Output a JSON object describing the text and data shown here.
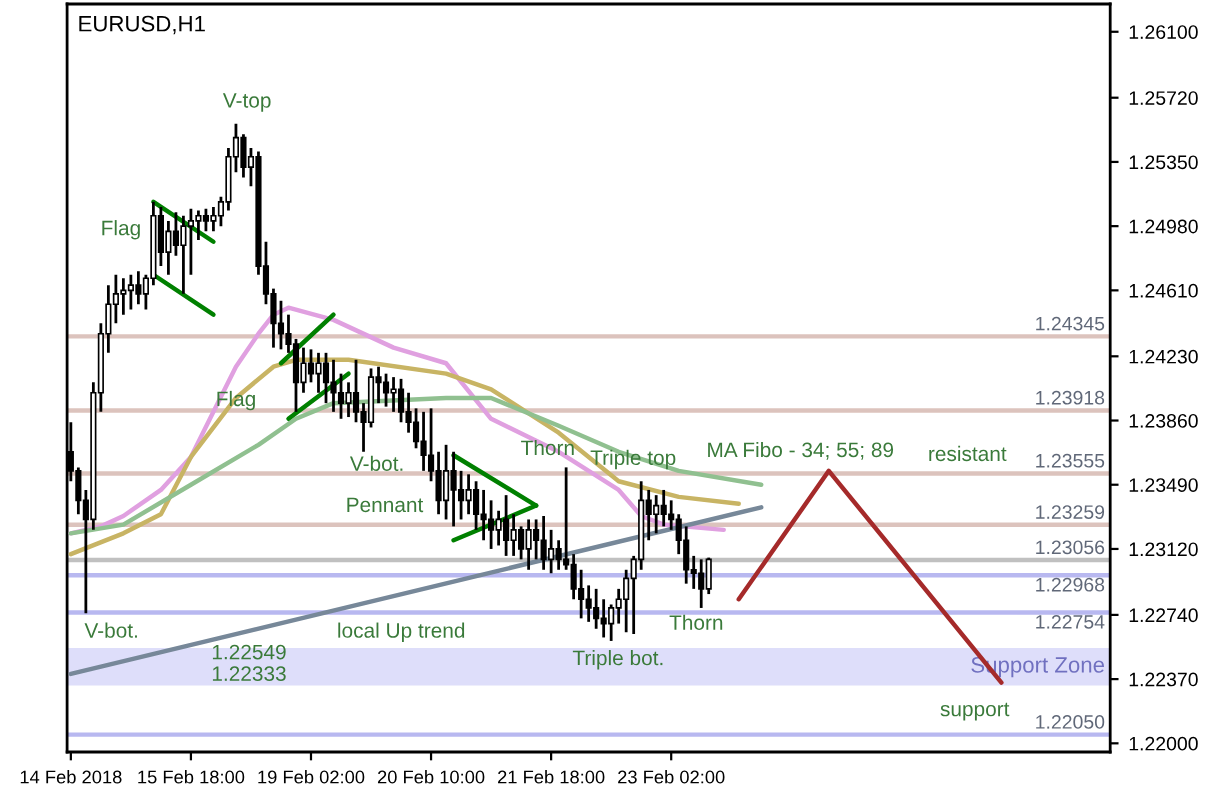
{
  "chart_data": {
    "type": "candlestick",
    "title": "EURUSD,H1",
    "color": "#000000",
    "categories": [
      "14 Feb 2018",
      null,
      null,
      null,
      null,
      null,
      null,
      null,
      null,
      null,
      null,
      null,
      null,
      null,
      null,
      null,
      "15 Feb 18:00",
      null,
      null,
      null,
      null,
      null,
      null,
      null,
      null,
      null,
      null,
      null,
      null,
      null,
      null,
      null,
      "19 Feb 02:00",
      null,
      null,
      null,
      null,
      null,
      null,
      null,
      null,
      null,
      null,
      null,
      null,
      null,
      null,
      null,
      "20 Feb 10:00",
      null,
      null,
      null,
      null,
      null,
      null,
      null,
      null,
      null,
      null,
      null,
      null,
      null,
      null,
      null,
      "21 Feb 18:00",
      null,
      null,
      null,
      null,
      null,
      null,
      null,
      null,
      null,
      null,
      null,
      null,
      null,
      null,
      null,
      "23 Feb 02:00",
      null,
      null,
      null,
      null,
      null,
      null,
      null,
      null,
      null,
      null,
      null,
      null,
      null,
      null,
      null,
      null,
      null,
      null,
      null,
      null,
      null,
      null,
      null,
      null,
      null,
      null,
      null,
      null,
      null,
      null,
      null,
      null,
      null,
      null,
      null,
      null,
      null,
      null,
      null,
      null,
      null,
      null,
      null,
      null,
      null,
      null,
      null,
      null,
      null,
      null,
      null,
      null,
      null,
      null,
      null,
      null,
      null,
      null
    ],
    "ohlc": [
      [
        1.2368,
        1.2385,
        1.2351,
        1.2357
      ],
      [
        1.2357,
        1.2359,
        1.2332,
        1.234
      ],
      [
        1.234,
        1.2346,
        1.2275,
        1.2329
      ],
      [
        1.2329,
        1.2408,
        1.2323,
        1.2402
      ],
      [
        1.2402,
        1.2442,
        1.2391,
        1.2436
      ],
      [
        1.2436,
        1.2464,
        1.2425,
        1.2453
      ],
      [
        1.2453,
        1.247,
        1.2442,
        1.2459
      ],
      [
        1.2459,
        1.2468,
        1.2447,
        1.2461
      ],
      [
        1.2461,
        1.247,
        1.245,
        1.2464
      ],
      [
        1.2464,
        1.2472,
        1.2453,
        1.2459
      ],
      [
        1.2459,
        1.247,
        1.245,
        1.2468
      ],
      [
        1.2468,
        1.2512,
        1.2464,
        1.2504
      ],
      [
        1.2504,
        1.2509,
        1.2475,
        1.2483
      ],
      [
        1.2483,
        1.2501,
        1.247,
        1.2495
      ],
      [
        1.2495,
        1.2506,
        1.2481,
        1.2487
      ],
      [
        1.2487,
        1.2504,
        1.2459,
        1.2498
      ],
      [
        1.2498,
        1.2508,
        1.247,
        1.2501
      ],
      [
        1.2501,
        1.2507,
        1.249,
        1.2504
      ],
      [
        1.2504,
        1.2508,
        1.2495,
        1.2501
      ],
      [
        1.2501,
        1.2509,
        1.2495,
        1.2504
      ],
      [
        1.2504,
        1.2515,
        1.2498,
        1.2512
      ],
      [
        1.2512,
        1.2543,
        1.2507,
        1.2538
      ],
      [
        1.2538,
        1.2557,
        1.2529,
        1.2549
      ],
      [
        1.2549,
        1.2551,
        1.2526,
        1.2532
      ],
      [
        1.2532,
        1.2543,
        1.2521,
        1.2538
      ],
      [
        1.2538,
        1.2541,
        1.247,
        1.2475
      ],
      [
        1.2475,
        1.2489,
        1.2453,
        1.2459
      ],
      [
        1.2459,
        1.2462,
        1.2428,
        1.2442
      ],
      [
        1.2442,
        1.2455,
        1.2427,
        1.2436
      ],
      [
        1.2436,
        1.2447,
        1.2425,
        1.243
      ],
      [
        1.243,
        1.2433,
        1.2391,
        1.2408
      ],
      [
        1.2408,
        1.2428,
        1.2402,
        1.2419
      ],
      [
        1.2419,
        1.2427,
        1.2408,
        1.2413
      ],
      [
        1.2413,
        1.2425,
        1.2402,
        1.2419
      ],
      [
        1.2419,
        1.2425,
        1.2396,
        1.2408
      ],
      [
        1.2408,
        1.2421,
        1.2391,
        1.2402
      ],
      [
        1.2402,
        1.2413,
        1.2387,
        1.2396
      ],
      [
        1.2396,
        1.2408,
        1.2388,
        1.2402
      ],
      [
        1.2402,
        1.2421,
        1.2385,
        1.2391
      ],
      [
        1.2391,
        1.2396,
        1.2368,
        1.2385
      ],
      [
        1.2385,
        1.2416,
        1.2382,
        1.2411
      ],
      [
        1.2411,
        1.2417,
        1.2396,
        1.2408
      ],
      [
        1.2408,
        1.2413,
        1.2394,
        1.2402
      ],
      [
        1.2402,
        1.2411,
        1.2391,
        1.2404
      ],
      [
        1.2404,
        1.241,
        1.2385,
        1.2391
      ],
      [
        1.2391,
        1.2402,
        1.2379,
        1.2385
      ],
      [
        1.2385,
        1.2393,
        1.237,
        1.2374
      ],
      [
        1.2374,
        1.2391,
        1.2357,
        1.2366
      ],
      [
        1.2366,
        1.2393,
        1.2351,
        1.2357
      ],
      [
        1.2357,
        1.2368,
        1.2332,
        1.234
      ],
      [
        1.234,
        1.2372,
        1.2329,
        1.2357
      ],
      [
        1.2357,
        1.2368,
        1.2325,
        1.2346
      ],
      [
        1.2346,
        1.2357,
        1.2329,
        1.234
      ],
      [
        1.234,
        1.2355,
        1.2332,
        1.2346
      ],
      [
        1.2346,
        1.2351,
        1.2323,
        1.2332
      ],
      [
        1.2332,
        1.2346,
        1.2317,
        1.2329
      ],
      [
        1.2329,
        1.234,
        1.2312,
        1.2323
      ],
      [
        1.2323,
        1.2334,
        1.2314,
        1.2329
      ],
      [
        1.2329,
        1.2343,
        1.2308,
        1.2317
      ],
      [
        1.2317,
        1.2332,
        1.2308,
        1.2323
      ],
      [
        1.2323,
        1.2325,
        1.2306,
        1.2312
      ],
      [
        1.2312,
        1.2329,
        1.23,
        1.2323
      ],
      [
        1.2323,
        1.2329,
        1.2306,
        1.2317
      ],
      [
        1.2317,
        1.2331,
        1.23,
        1.2306
      ],
      [
        1.2306,
        1.2323,
        1.2298,
        1.2312
      ],
      [
        1.2312,
        1.2317,
        1.23,
        1.2306
      ],
      [
        1.2306,
        1.2359,
        1.23,
        1.2303
      ],
      [
        1.2303,
        1.2309,
        1.2283,
        1.2289
      ],
      [
        1.2289,
        1.23,
        1.2272,
        1.2283
      ],
      [
        1.2283,
        1.2291,
        1.227,
        1.2278
      ],
      [
        1.2278,
        1.2289,
        1.2266,
        1.2272
      ],
      [
        1.2272,
        1.2283,
        1.2261,
        1.2269
      ],
      [
        1.2269,
        1.228,
        1.2259,
        1.2278
      ],
      [
        1.2278,
        1.2289,
        1.2269,
        1.2283
      ],
      [
        1.2283,
        1.23,
        1.2264,
        1.2295
      ],
      [
        1.2295,
        1.2308,
        1.2263,
        1.2306
      ],
      [
        1.2306,
        1.2351,
        1.23,
        1.234
      ],
      [
        1.234,
        1.2346,
        1.2317,
        1.2332
      ],
      [
        1.2332,
        1.2343,
        1.2321,
        1.2337
      ],
      [
        1.2337,
        1.2346,
        1.2325,
        1.2332
      ],
      [
        1.2332,
        1.234,
        1.2323,
        1.2329
      ],
      [
        1.2329,
        1.2332,
        1.2309,
        1.2317
      ],
      [
        1.2317,
        1.2325,
        1.2292,
        1.23
      ],
      [
        1.23,
        1.2308,
        1.2289,
        1.2298
      ],
      [
        1.2298,
        1.2306,
        1.2278,
        1.2289
      ],
      [
        1.2289,
        1.2307,
        1.2286,
        1.2306
      ],
      null,
      null,
      null,
      null,
      null,
      null,
      null,
      null,
      null,
      null,
      null,
      null,
      null,
      null,
      null,
      null,
      null,
      null,
      null,
      null,
      null,
      null,
      null,
      null,
      null,
      null,
      null,
      null,
      null,
      null,
      null,
      null,
      null,
      null,
      null,
      null,
      null,
      null,
      null,
      null,
      null,
      null,
      null,
      null,
      null,
      null,
      null,
      null,
      null,
      null,
      null,
      null,
      null
    ],
    "series": [
      {
        "type": "line",
        "color": "#e0a0e0",
        "values": [
          1.2321,
          null,
          null,
          null,
          1.2325,
          null,
          null,
          1.2331,
          null,
          null,
          null,
          null,
          1.2346,
          null,
          null,
          null,
          1.2365,
          null,
          null,
          1.2391,
          null,
          null,
          1.2417,
          null,
          null,
          1.2436,
          null,
          1.2447,
          null,
          1.2451,
          null,
          null,
          null,
          null,
          null,
          1.2444,
          null,
          null,
          null,
          null,
          null,
          null,
          null,
          1.2428,
          null,
          null,
          null,
          null,
          null,
          null,
          1.2419,
          null,
          null,
          null,
          null,
          null,
          1.2387,
          null,
          null,
          null,
          null,
          null,
          null,
          null,
          null,
          1.2368,
          null,
          null,
          null,
          null,
          null,
          null,
          null,
          1.2346,
          null,
          null,
          1.2331,
          null,
          null,
          1.2326,
          null,
          null,
          null,
          null,
          null,
          null,
          null,
          1.2323,
          null,
          null,
          null,
          null,
          null,
          null,
          null,
          null,
          null,
          null,
          null,
          null,
          null,
          null,
          null,
          null,
          null,
          null,
          null,
          null,
          null,
          null,
          null,
          null,
          null,
          null,
          null,
          null,
          null,
          null,
          null,
          null,
          null,
          null,
          null,
          null,
          null,
          null,
          null,
          null,
          null,
          null,
          null,
          null,
          null,
          null,
          null,
          null,
          null,
          null,
          null
        ]
      },
      {
        "type": "line",
        "color": "#c8b464",
        "values": [
          1.2309,
          null,
          null,
          null,
          null,
          null,
          null,
          1.2321,
          null,
          null,
          null,
          null,
          1.2332,
          null,
          null,
          null,
          1.2365,
          null,
          null,
          null,
          null,
          null,
          1.2399,
          null,
          null,
          null,
          null,
          1.2417,
          null,
          null,
          1.2421,
          null,
          null,
          null,
          null,
          null,
          null,
          1.2421,
          null,
          null,
          null,
          null,
          null,
          null,
          null,
          null,
          null,
          null,
          null,
          null,
          1.2413,
          null,
          null,
          null,
          null,
          null,
          1.2404,
          null,
          null,
          null,
          null,
          null,
          null,
          null,
          null,
          1.2379,
          null,
          null,
          null,
          null,
          null,
          null,
          null,
          1.2351,
          null,
          null,
          null,
          null,
          null,
          null,
          null,
          1.2342,
          null,
          null,
          null,
          null,
          null,
          null,
          null,
          1.2338,
          null,
          null,
          null,
          null,
          null,
          null,
          null,
          null,
          null,
          null,
          null,
          null,
          null,
          null,
          null,
          null,
          null,
          null,
          null,
          null,
          null,
          null,
          null,
          null,
          null,
          null,
          null,
          null,
          null,
          null,
          null,
          null,
          null,
          null,
          null,
          null,
          null,
          null,
          null,
          null,
          null,
          null,
          null,
          null,
          null,
          null,
          null,
          null,
          null
        ]
      },
      {
        "type": "line",
        "color": "#90c090",
        "values": [
          1.2321,
          null,
          null,
          null,
          null,
          null,
          null,
          1.2326,
          null,
          null,
          null,
          null,
          null,
          null,
          null,
          null,
          1.2349,
          null,
          null,
          null,
          null,
          null,
          null,
          null,
          null,
          1.2372,
          null,
          null,
          null,
          null,
          1.2387,
          null,
          null,
          null,
          null,
          1.2396,
          null,
          null,
          null,
          null,
          null,
          null,
          null,
          null,
          null,
          null,
          null,
          null,
          null,
          null,
          1.2399,
          null,
          null,
          null,
          null,
          null,
          1.2399,
          null,
          null,
          null,
          null,
          null,
          null,
          null,
          null,
          1.2383,
          null,
          null,
          null,
          null,
          null,
          null,
          null,
          1.2368,
          null,
          null,
          null,
          null,
          null,
          null,
          null,
          1.2357,
          null,
          null,
          null,
          null,
          null,
          null,
          null,
          null,
          null,
          null,
          1.2349,
          null,
          null,
          null,
          null,
          null,
          null,
          null,
          null,
          null,
          null,
          null,
          null,
          null,
          null,
          null,
          null,
          null,
          null,
          null,
          null,
          null,
          null,
          null,
          null,
          null,
          null,
          null,
          null,
          null,
          null,
          null,
          null,
          null,
          null,
          null,
          null,
          null,
          null,
          null,
          null,
          null,
          null,
          null,
          null,
          null,
          null
        ]
      },
      {
        "type": "line",
        "color": "#778899",
        "values": [
          1.224,
          null,
          null,
          null,
          null,
          null,
          null,
          null,
          null,
          null,
          null,
          null,
          null,
          null,
          null,
          null,
          null,
          null,
          null,
          null,
          null,
          null,
          null,
          null,
          null,
          null,
          null,
          null,
          null,
          null,
          null,
          null,
          null,
          null,
          null,
          null,
          null,
          null,
          null,
          null,
          null,
          null,
          null,
          null,
          null,
          null,
          null,
          null,
          null,
          null,
          null,
          null,
          null,
          null,
          null,
          null,
          null,
          null,
          null,
          null,
          null,
          null,
          null,
          null,
          null,
          null,
          null,
          null,
          null,
          null,
          null,
          null,
          null,
          null,
          null,
          null,
          null,
          null,
          null,
          null,
          null,
          null,
          null,
          null,
          null,
          null,
          null,
          null,
          null,
          null,
          null,
          null,
          1.2336,
          null,
          null,
          null,
          null,
          null,
          null,
          null,
          null,
          null,
          null,
          null,
          null,
          null,
          null,
          null,
          null,
          null,
          null,
          null,
          null,
          null,
          null,
          null,
          null,
          null,
          null,
          null,
          null,
          null,
          null,
          null,
          null,
          null,
          null,
          null,
          null,
          null,
          null,
          null,
          null,
          null,
          null,
          null,
          null,
          null,
          null
        ]
      },
      {
        "type": "line",
        "color": "#008000",
        "values": [
          null,
          null,
          null,
          null,
          null,
          null,
          null,
          null,
          null,
          null,
          null,
          1.2512,
          null,
          null,
          null,
          null,
          null,
          null,
          null,
          1.2489,
          null,
          null,
          null,
          null,
          null,
          null,
          null,
          null,
          null,
          null,
          null,
          null,
          null,
          null,
          null,
          null,
          null,
          null,
          null,
          null,
          null,
          null,
          null,
          null,
          null,
          null,
          null,
          null,
          null,
          null,
          null,
          null,
          null,
          null,
          null,
          null,
          null,
          null,
          null,
          null,
          null,
          null,
          null,
          null,
          null,
          null,
          null,
          null,
          null,
          null,
          null,
          null,
          null,
          null,
          null,
          null,
          null,
          null,
          null,
          null,
          null,
          null,
          null,
          null,
          null,
          null,
          null,
          null,
          null,
          null,
          null,
          null,
          null,
          null,
          null,
          null,
          null,
          null,
          null,
          null,
          null,
          null,
          null,
          null,
          null,
          null,
          null,
          null,
          null,
          null,
          null,
          null,
          null,
          null,
          null,
          null,
          null,
          null,
          null,
          null,
          null,
          null,
          null,
          null,
          null,
          null,
          null,
          null,
          null,
          null,
          null,
          null,
          null,
          null,
          null,
          null,
          null,
          null,
          null
        ]
      },
      {
        "type": "line",
        "color": "#008000",
        "values": [
          null,
          null,
          null,
          null,
          null,
          null,
          null,
          null,
          null,
          null,
          null,
          1.247,
          null,
          null,
          null,
          null,
          null,
          null,
          null,
          1.2447,
          null,
          null,
          null,
          null,
          null,
          null,
          null,
          null,
          null,
          null,
          null,
          null,
          null,
          null,
          null,
          null,
          null,
          null,
          null,
          null,
          null,
          null,
          null,
          null,
          null,
          null,
          null,
          null,
          null,
          null,
          null,
          null,
          null,
          null,
          null,
          null,
          null,
          null,
          null,
          null,
          null,
          null,
          null,
          null,
          null,
          null,
          null,
          null,
          null,
          null,
          null,
          null,
          null,
          null,
          null,
          null,
          null,
          null,
          null,
          null,
          null,
          null,
          null,
          null,
          null,
          null,
          null,
          null,
          null,
          null,
          null,
          null,
          null,
          null,
          null,
          null,
          null,
          null,
          null,
          null,
          null,
          null,
          null,
          null,
          null,
          null,
          null,
          null,
          null,
          null,
          null,
          null,
          null,
          null,
          null,
          null,
          null,
          null,
          null,
          null,
          null,
          null,
          null,
          null,
          null,
          null,
          null,
          null,
          null,
          null,
          null,
          null,
          null,
          null,
          null,
          null,
          null,
          null,
          null
        ]
      },
      {
        "type": "line",
        "color": "#008000",
        "values": [
          null,
          null,
          null,
          null,
          null,
          null,
          null,
          null,
          null,
          null,
          null,
          null,
          null,
          null,
          null,
          null,
          null,
          null,
          null,
          null,
          null,
          null,
          null,
          null,
          null,
          null,
          null,
          null,
          1.2419,
          null,
          null,
          null,
          null,
          null,
          null,
          1.2447,
          null,
          null,
          null,
          null,
          null,
          null,
          null,
          null,
          null,
          null,
          null,
          null,
          null,
          null,
          null,
          null,
          null,
          null,
          null,
          null,
          null,
          null,
          null,
          null,
          null,
          null,
          null,
          null,
          null,
          null,
          null,
          null,
          null,
          null,
          null,
          null,
          null,
          null,
          null,
          null,
          null,
          null,
          null,
          null,
          null,
          null,
          null,
          null,
          null,
          null,
          null,
          null,
          null,
          null,
          null,
          null,
          null,
          null,
          null,
          null,
          null,
          null,
          null,
          null,
          null,
          null,
          null,
          null,
          null,
          null,
          null,
          null,
          null,
          null,
          null,
          null,
          null,
          null,
          null,
          null,
          null,
          null,
          null,
          null,
          null,
          null,
          null,
          null,
          null,
          null,
          null,
          null,
          null,
          null,
          null,
          null,
          null,
          null,
          null,
          null,
          null,
          null,
          null
        ]
      },
      {
        "type": "line",
        "color": "#008000",
        "values": [
          null,
          null,
          null,
          null,
          null,
          null,
          null,
          null,
          null,
          null,
          null,
          null,
          null,
          null,
          null,
          null,
          null,
          null,
          null,
          null,
          null,
          null,
          null,
          null,
          null,
          null,
          null,
          null,
          null,
          1.2387,
          null,
          null,
          null,
          null,
          null,
          null,
          null,
          1.2413,
          null,
          null,
          null,
          null,
          null,
          null,
          null,
          null,
          null,
          null,
          null,
          null,
          null,
          null,
          null,
          null,
          null,
          null,
          null,
          null,
          null,
          null,
          null,
          null,
          null,
          null,
          null,
          null,
          null,
          null,
          null,
          null,
          null,
          null,
          null,
          null,
          null,
          null,
          null,
          null,
          null,
          null,
          null,
          null,
          null,
          null,
          null,
          null,
          null,
          null,
          null,
          null,
          null,
          null,
          null,
          null,
          null,
          null,
          null,
          null,
          null,
          null,
          null,
          null,
          null,
          null,
          null,
          null,
          null,
          null,
          null,
          null,
          null,
          null,
          null,
          null,
          null,
          null,
          null,
          null,
          null,
          null,
          null,
          null,
          null,
          null,
          null,
          null,
          null,
          null,
          null,
          null,
          null,
          null,
          null,
          null,
          null,
          null,
          null,
          null,
          null
        ]
      },
      {
        "type": "line",
        "color": "#008000",
        "values": [
          null,
          null,
          null,
          null,
          null,
          null,
          null,
          null,
          null,
          null,
          null,
          null,
          null,
          null,
          null,
          null,
          null,
          null,
          null,
          null,
          null,
          null,
          null,
          null,
          null,
          null,
          null,
          null,
          null,
          null,
          null,
          null,
          null,
          null,
          null,
          null,
          null,
          null,
          null,
          null,
          null,
          null,
          null,
          null,
          null,
          null,
          null,
          null,
          null,
          null,
          null,
          1.2366,
          null,
          null,
          null,
          null,
          null,
          null,
          null,
          null,
          null,
          null,
          1.2337,
          null,
          null,
          null,
          null,
          null,
          null,
          null,
          null,
          null,
          null,
          null,
          null,
          null,
          null,
          null,
          null,
          null,
          null,
          null,
          null,
          null,
          null,
          null,
          null,
          null,
          null,
          null,
          null,
          null,
          null,
          null,
          null,
          null,
          null,
          null,
          null,
          null,
          null,
          null,
          null,
          null,
          null,
          null,
          null,
          null,
          null,
          null,
          null,
          null,
          null,
          null,
          null,
          null,
          null,
          null,
          null,
          null,
          null,
          null,
          null,
          null,
          null,
          null,
          null,
          null,
          null,
          null,
          null,
          null,
          null,
          null,
          null,
          null,
          null,
          null,
          null
        ]
      },
      {
        "type": "line",
        "color": "#008000",
        "values": [
          null,
          null,
          null,
          null,
          null,
          null,
          null,
          null,
          null,
          null,
          null,
          null,
          null,
          null,
          null,
          null,
          null,
          null,
          null,
          null,
          null,
          null,
          null,
          null,
          null,
          null,
          null,
          null,
          null,
          null,
          null,
          null,
          null,
          null,
          null,
          null,
          null,
          null,
          null,
          null,
          null,
          null,
          null,
          null,
          null,
          null,
          null,
          null,
          null,
          null,
          null,
          1.2317,
          null,
          null,
          null,
          null,
          null,
          null,
          null,
          null,
          null,
          null,
          1.2337,
          null,
          null,
          null,
          null,
          null,
          null,
          null,
          null,
          null,
          null,
          null,
          null,
          null,
          null,
          null,
          null,
          null,
          null,
          null,
          null,
          null,
          null,
          null,
          null,
          null,
          null,
          null,
          null,
          null,
          null,
          null,
          null,
          null,
          null,
          null,
          null,
          null,
          null,
          null,
          null,
          null,
          null,
          null,
          null,
          null,
          null,
          null,
          null,
          null,
          null,
          null,
          null,
          null,
          null,
          null,
          null,
          null,
          null,
          null,
          null,
          null,
          null,
          null,
          null,
          null,
          null,
          null,
          null,
          null,
          null,
          null,
          null,
          null,
          null,
          null,
          null
        ]
      },
      {
        "type": "line",
        "color": "#a52a2a",
        "values": [
          null,
          null,
          null,
          null,
          null,
          null,
          null,
          null,
          null,
          null,
          null,
          null,
          null,
          null,
          null,
          null,
          null,
          null,
          null,
          null,
          null,
          null,
          null,
          null,
          null,
          null,
          null,
          null,
          null,
          null,
          null,
          null,
          null,
          null,
          null,
          null,
          null,
          null,
          null,
          null,
          null,
          null,
          null,
          null,
          null,
          null,
          null,
          null,
          null,
          null,
          null,
          null,
          null,
          null,
          null,
          null,
          null,
          null,
          null,
          null,
          null,
          null,
          null,
          null,
          null,
          null,
          null,
          null,
          null,
          null,
          null,
          null,
          null,
          null,
          null,
          null,
          null,
          null,
          null,
          null,
          null,
          null,
          null,
          null,
          null,
          null,
          null,
          null,
          null,
          1.2283,
          null,
          null,
          null,
          null,
          null,
          null,
          null,
          null,
          null,
          null,
          null,
          1.2357,
          null,
          null,
          null,
          null,
          null,
          null,
          null,
          null,
          null,
          null,
          null,
          null,
          null,
          null,
          null,
          null,
          null,
          null,
          null,
          null,
          null,
          null,
          1.2235,
          null,
          null,
          null,
          null,
          null,
          null,
          null,
          null,
          null,
          null,
          null,
          null,
          null,
          null
        ]
      }
    ],
    "ref_lines": [
      {
        "axis": "y",
        "value": 1.24345,
        "label": "1.24345",
        "color": "#dcc3bd"
      },
      {
        "axis": "y",
        "value": 1.23918,
        "label": "1.23918",
        "color": "#dcc3bd"
      },
      {
        "axis": "y",
        "value": 1.23555,
        "label": "1.23555",
        "color": "#dcc3bd"
      },
      {
        "axis": "y",
        "value": 1.23259,
        "label": "1.23259",
        "color": "#dcc3bd"
      },
      {
        "axis": "y",
        "value": 1.23056,
        "label": "1.23056",
        "color": "#c0c0c0"
      },
      {
        "axis": "y",
        "value": 1.22968,
        "label": "1.22968",
        "color": "#b8b8f0"
      },
      {
        "axis": "y",
        "value": 1.22754,
        "label": "1.22754",
        "color": "#b8b8f0"
      },
      {
        "axis": "y",
        "value": 1.2205,
        "label": "1.22050",
        "color": "#b8b8f0"
      }
    ],
    "bands": [
      {
        "axis": "y",
        "from": 1.22333,
        "to": 1.22549,
        "label": "Support Zone",
        "color": "#dedefa"
      }
    ],
    "annotations": [
      "V-top",
      "Flag",
      "Flag",
      "V-bot.",
      "V-bot.",
      "Pennant",
      "Thorn",
      "Triple top",
      "Thorn",
      "Triple bot.",
      "local Up trend",
      "MA Fibo - 34; 55; 89",
      "resistant",
      "support",
      "1.22549",
      "1.22333"
    ],
    "ylim": [
      1.2195,
      1.2626
    ],
    "yticks": [
      {
        "value": 1.261,
        "label": "1.26100"
      },
      {
        "value": 1.2572,
        "label": "1.25720"
      },
      {
        "value": 1.2535,
        "label": "1.25350"
      },
      {
        "value": 1.2498,
        "label": "1.24980"
      },
      {
        "value": 1.2461,
        "label": "1.24610"
      },
      {
        "value": 1.2423,
        "label": "1.24230"
      },
      {
        "value": 1.2386,
        "label": "1.23860"
      },
      {
        "value": 1.2349,
        "label": "1.23490"
      },
      {
        "value": 1.2312,
        "label": "1.23120"
      },
      {
        "value": 1.2274,
        "label": "1.22740"
      },
      {
        "value": 1.2237,
        "label": "1.22370"
      },
      {
        "value": 1.22,
        "label": "1.22000"
      }
    ]
  }
}
